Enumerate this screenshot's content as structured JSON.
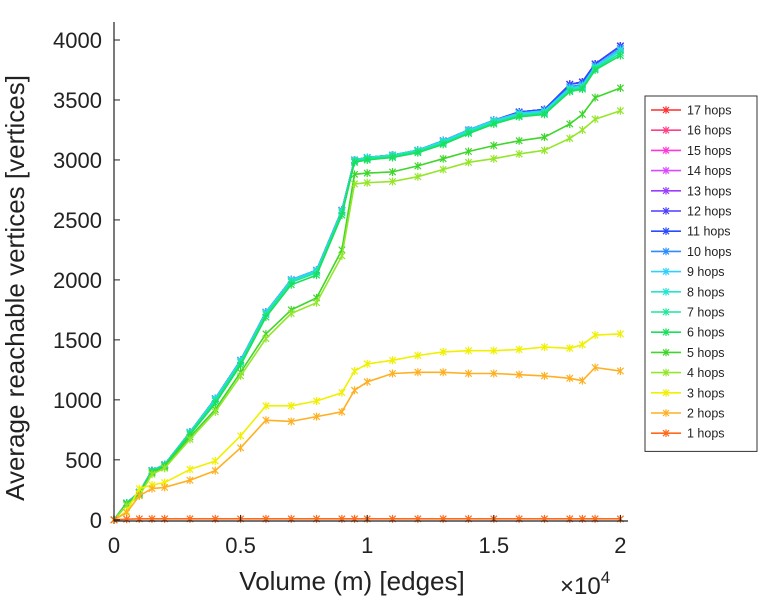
{
  "chart_data": {
    "type": "line",
    "title": "",
    "xlabel": "Volume (m) [edges]",
    "ylabel": "Average reachable vertices [vertices]",
    "x_exponent_label": "×10",
    "x_exponent_power": "4",
    "xlim": [
      0,
      2.03
    ],
    "ylim": [
      -10,
      4150
    ],
    "xticks": [
      0,
      0.5,
      1,
      1.5,
      2
    ],
    "xtick_labels": [
      "0",
      "0.5",
      "1",
      "1.5",
      "2"
    ],
    "yticks": [
      0,
      500,
      1000,
      1500,
      2000,
      2500,
      3000,
      3500,
      4000
    ],
    "ytick_labels": [
      "0",
      "500",
      "1000",
      "1500",
      "2000",
      "2500",
      "3000",
      "3500",
      "4000"
    ],
    "grid": false,
    "legend_position": "right",
    "x": [
      0,
      0.05,
      0.1,
      0.15,
      0.2,
      0.3,
      0.4,
      0.5,
      0.6,
      0.7,
      0.8,
      0.9,
      0.95,
      1.0,
      1.1,
      1.2,
      1.3,
      1.4,
      1.5,
      1.6,
      1.7,
      1.8,
      1.85,
      1.9,
      2.0
    ],
    "series": [
      {
        "name": "17 hops",
        "color": "#ff2d2d",
        "values": [
          0,
          140,
          230,
          410,
          460,
          730,
          1010,
          1330,
          1730,
          2000,
          2080,
          2580,
          3000,
          3020,
          3040,
          3080,
          3160,
          3250,
          3330,
          3400,
          3420,
          3630,
          3650,
          3800,
          3950
        ]
      },
      {
        "name": "16 hops",
        "color": "#ff3f86",
        "values": [
          0,
          140,
          230,
          410,
          460,
          730,
          1010,
          1330,
          1730,
          2000,
          2080,
          2580,
          3000,
          3020,
          3040,
          3080,
          3160,
          3250,
          3330,
          3400,
          3420,
          3630,
          3650,
          3800,
          3950
        ]
      },
      {
        "name": "15 hops",
        "color": "#ff36d8",
        "values": [
          0,
          140,
          230,
          410,
          460,
          730,
          1010,
          1330,
          1730,
          2000,
          2080,
          2580,
          3000,
          3020,
          3040,
          3080,
          3160,
          3250,
          3330,
          3400,
          3420,
          3630,
          3650,
          3800,
          3950
        ]
      },
      {
        "name": "14 hops",
        "color": "#d84aff",
        "values": [
          0,
          140,
          230,
          410,
          460,
          730,
          1010,
          1330,
          1730,
          2000,
          2080,
          2580,
          3000,
          3020,
          3040,
          3080,
          3160,
          3250,
          3330,
          3400,
          3420,
          3630,
          3650,
          3800,
          3950
        ]
      },
      {
        "name": "13 hops",
        "color": "#9a3dff",
        "values": [
          0,
          140,
          230,
          410,
          460,
          730,
          1010,
          1330,
          1730,
          2000,
          2080,
          2580,
          3000,
          3020,
          3040,
          3080,
          3160,
          3250,
          3330,
          3400,
          3420,
          3630,
          3650,
          3800,
          3950
        ]
      },
      {
        "name": "12 hops",
        "color": "#4a3dff",
        "values": [
          0,
          140,
          230,
          410,
          460,
          730,
          1010,
          1330,
          1730,
          2000,
          2080,
          2580,
          3000,
          3020,
          3040,
          3080,
          3160,
          3250,
          3330,
          3400,
          3420,
          3630,
          3650,
          3800,
          3950
        ]
      },
      {
        "name": "11 hops",
        "color": "#2b4bff",
        "values": [
          0,
          140,
          230,
          410,
          460,
          730,
          1010,
          1330,
          1730,
          2000,
          2080,
          2580,
          3000,
          3020,
          3040,
          3080,
          3160,
          3250,
          3330,
          3400,
          3420,
          3630,
          3650,
          3800,
          3950
        ]
      },
      {
        "name": "10 hops",
        "color": "#2e8cff",
        "values": [
          0,
          140,
          230,
          410,
          460,
          730,
          1010,
          1330,
          1730,
          2000,
          2080,
          2580,
          3000,
          3020,
          3040,
          3080,
          3160,
          3250,
          3330,
          3390,
          3410,
          3610,
          3630,
          3780,
          3930
        ]
      },
      {
        "name": "9 hops",
        "color": "#2fcfff",
        "values": [
          0,
          140,
          230,
          410,
          460,
          730,
          1010,
          1330,
          1730,
          2000,
          2080,
          2580,
          3000,
          3020,
          3040,
          3080,
          3160,
          3250,
          3330,
          3390,
          3410,
          3600,
          3620,
          3780,
          3920
        ]
      },
      {
        "name": "8 hops",
        "color": "#22e6d0",
        "values": [
          0,
          140,
          230,
          410,
          460,
          730,
          1000,
          1320,
          1720,
          1990,
          2070,
          2570,
          3000,
          3020,
          3040,
          3080,
          3150,
          3240,
          3320,
          3380,
          3400,
          3590,
          3610,
          3770,
          3910
        ]
      },
      {
        "name": "7 hops",
        "color": "#1de69a",
        "values": [
          0,
          140,
          225,
          405,
          455,
          720,
          990,
          1310,
          1710,
          1980,
          2060,
          2560,
          2990,
          3010,
          3030,
          3070,
          3140,
          3230,
          3310,
          3370,
          3390,
          3580,
          3600,
          3760,
          3890
        ]
      },
      {
        "name": "6 hops",
        "color": "#19e05a",
        "values": [
          0,
          135,
          220,
          400,
          450,
          710,
          970,
          1290,
          1690,
          1960,
          2040,
          2540,
          2980,
          3000,
          3020,
          3060,
          3130,
          3220,
          3300,
          3360,
          3380,
          3570,
          3590,
          3750,
          3870
        ]
      },
      {
        "name": "5 hops",
        "color": "#3ed62a",
        "values": [
          0,
          130,
          210,
          390,
          440,
          690,
          920,
          1230,
          1550,
          1750,
          1850,
          2250,
          2880,
          2890,
          2900,
          2950,
          3010,
          3070,
          3120,
          3160,
          3190,
          3300,
          3380,
          3520,
          3600
        ]
      },
      {
        "name": "4 hops",
        "color": "#94e62a",
        "values": [
          0,
          120,
          200,
          380,
          430,
          670,
          900,
          1200,
          1510,
          1720,
          1810,
          2200,
          2800,
          2810,
          2820,
          2860,
          2920,
          2980,
          3010,
          3050,
          3080,
          3180,
          3250,
          3340,
          3410
        ]
      },
      {
        "name": "3 hops",
        "color": "#f0f000",
        "values": [
          0,
          70,
          260,
          290,
          310,
          420,
          490,
          700,
          950,
          950,
          990,
          1060,
          1240,
          1300,
          1330,
          1370,
          1400,
          1410,
          1410,
          1420,
          1440,
          1430,
          1460,
          1540,
          1550
        ]
      },
      {
        "name": "2 hops",
        "color": "#ffb022",
        "values": [
          0,
          60,
          200,
          260,
          270,
          330,
          410,
          600,
          830,
          820,
          860,
          900,
          1080,
          1150,
          1220,
          1230,
          1230,
          1220,
          1220,
          1210,
          1200,
          1180,
          1160,
          1270,
          1240
        ]
      },
      {
        "name": "1 hops",
        "color": "#ff6a1a",
        "values": [
          0,
          5,
          8,
          8,
          8,
          8,
          8,
          8,
          8,
          8,
          8,
          8,
          8,
          8,
          8,
          8,
          8,
          8,
          8,
          8,
          8,
          8,
          8,
          8,
          8
        ]
      }
    ]
  }
}
